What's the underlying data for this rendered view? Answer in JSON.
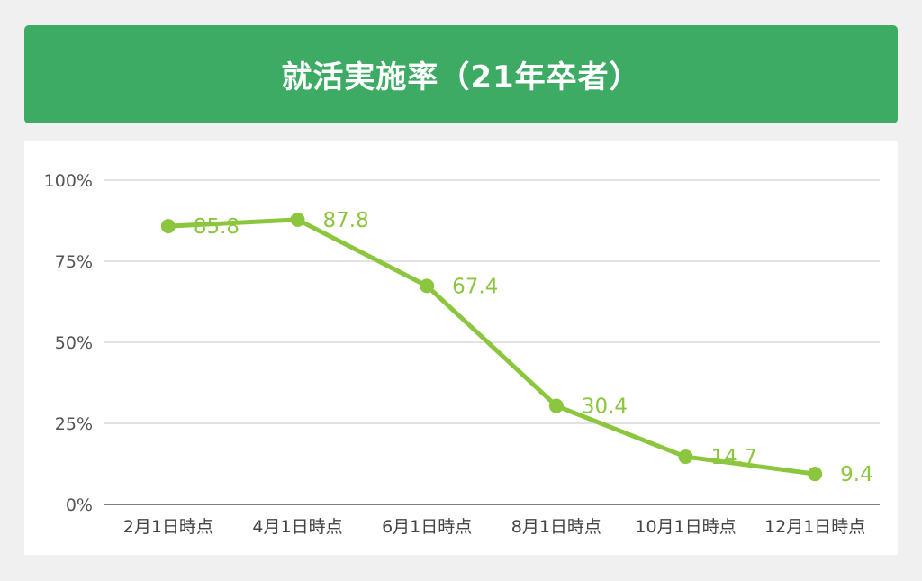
{
  "header": {
    "title": "就活実施率（21年卒者）",
    "background_color": "#3dab64",
    "text_color": "#ffffff"
  },
  "chart_data": {
    "type": "line",
    "title": "就活実施率（21年卒者）",
    "categories": [
      "2月1日時点",
      "4月1日時点",
      "6月1日時点",
      "8月1日時点",
      "10月1日時点",
      "12月1日時点"
    ],
    "series": [
      {
        "values": [
          85.8,
          87.8,
          67.4,
          30.4,
          14.7,
          9.4
        ],
        "data_labels": [
          "85.8",
          "87.8",
          "67.4",
          "30.4",
          "14.7",
          "9.4"
        ],
        "color": "#8cc63f"
      }
    ],
    "y_ticks": [
      0,
      25,
      50,
      75,
      100
    ],
    "y_tick_labels": [
      "0%",
      "25%",
      "50%",
      "75%",
      "100%"
    ],
    "ylim": [
      0,
      100
    ],
    "grid": true,
    "legend": "none",
    "xlabel": "",
    "ylabel": ""
  }
}
